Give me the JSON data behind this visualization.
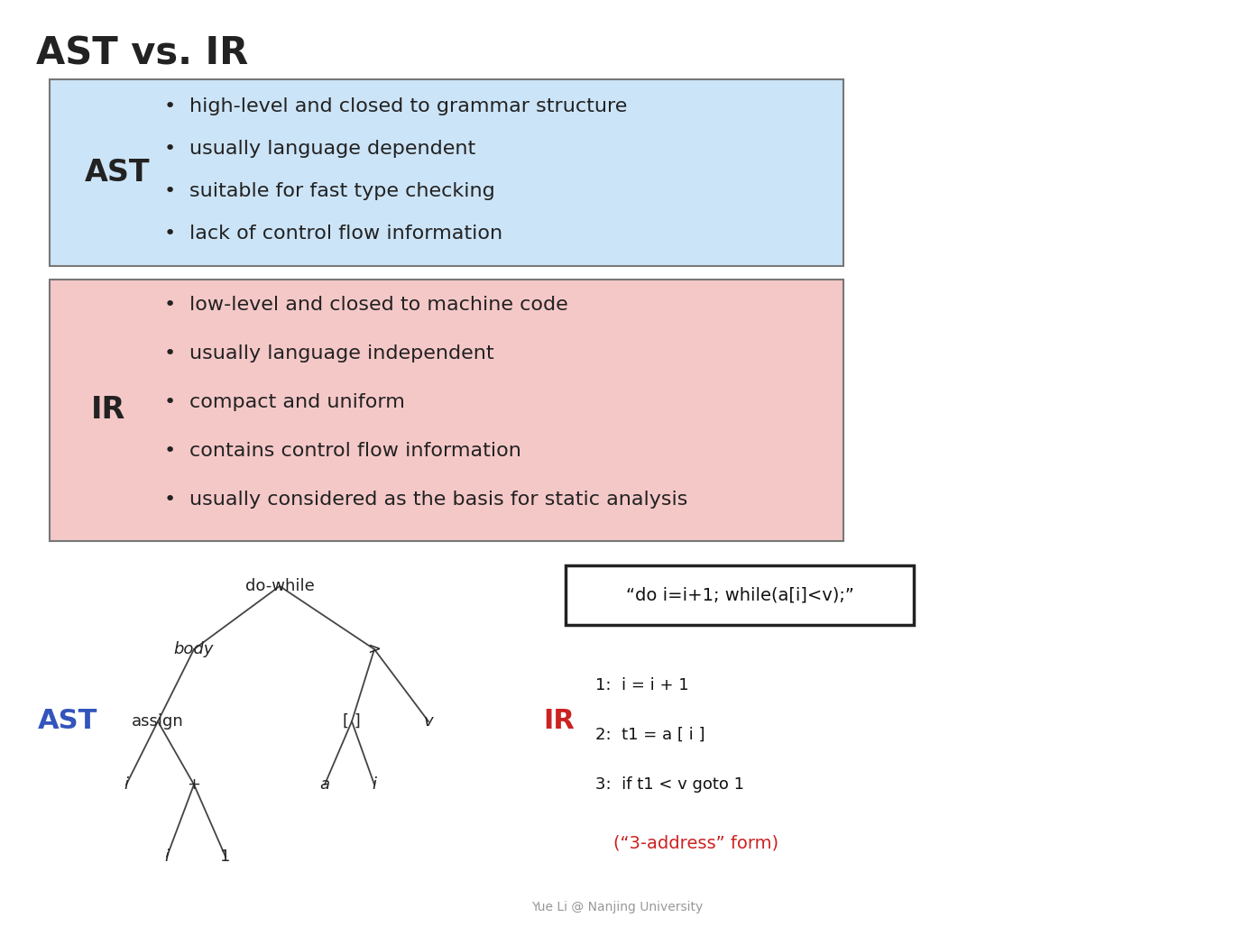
{
  "title": "AST vs. IR",
  "title_fontsize": 30,
  "background_color": "#ffffff",
  "ast_box": {
    "label": "AST",
    "bg_color": "#cce4f7",
    "border_color": "#777777",
    "bullets": [
      "high-level and closed to grammar structure",
      "usually language dependent",
      "suitable for fast type checking",
      "lack of control flow information"
    ]
  },
  "ir_box": {
    "label": "IR",
    "bg_color": "#f5c8c8",
    "border_color": "#777777",
    "bullets": [
      "low-level and closed to machine code",
      "usually language independent",
      "compact and uniform",
      "contains control flow information",
      "usually considered as the basis for static analysis"
    ]
  },
  "footer": "Yue Li @ Nanjing University",
  "code_box_text": "“do i=i+1; while(a[i]<v);”",
  "ir_code_lines": [
    "1:  i = i + 1",
    "2:  t1 = a [ i ]",
    "3:  if t1 < v goto 1"
  ],
  "ir_code_note": "(“3-address” form)",
  "ast_label_color": "#3355bb",
  "ir_code_label_color": "#cc2222",
  "ir_note_color": "#cc2222"
}
